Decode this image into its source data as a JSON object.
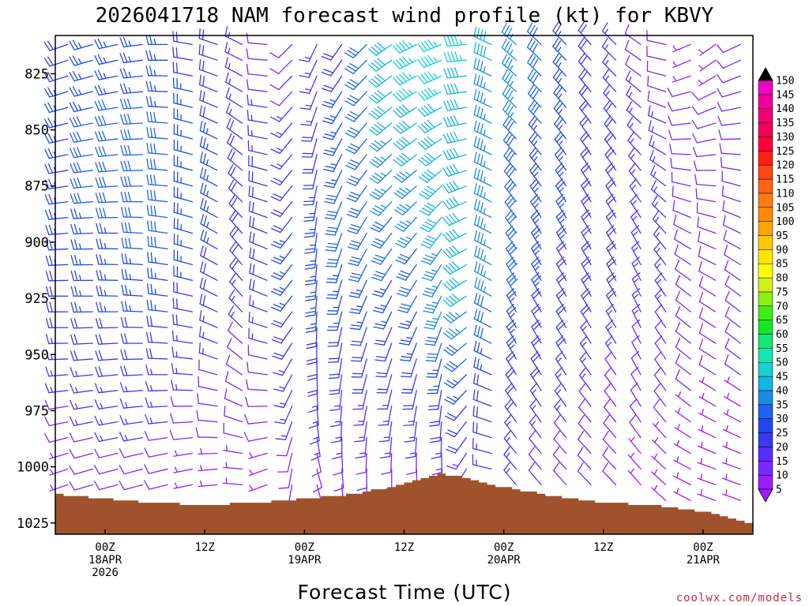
{
  "chart_data": {
    "type": "wind-profile",
    "title": "2026041718 NAM forecast wind profile (kt) for KBVY",
    "xlabel": "Forecast Time (UTC)",
    "ylabel": "",
    "credit": "coolwx.com/models",
    "units": "kt",
    "y_axis": {
      "inverted": true,
      "ylim": [
        808,
        1030
      ],
      "ticks": [
        825,
        850,
        875,
        900,
        925,
        950,
        975,
        1000,
        1025
      ],
      "tick_labels": [
        "825",
        "850",
        "875",
        "900",
        "925",
        "950",
        "975",
        "1000",
        "1025"
      ]
    },
    "x_axis": {
      "xlim_hours": [
        -6,
        78
      ],
      "ticks": [
        {
          "hour": 0,
          "label1": "00Z",
          "label2": "18APR",
          "label3": "2026"
        },
        {
          "hour": 12,
          "label1": "12Z",
          "label2": "",
          "label3": ""
        },
        {
          "hour": 24,
          "label1": "00Z",
          "label2": "19APR",
          "label3": ""
        },
        {
          "hour": 36,
          "label1": "12Z",
          "label2": "",
          "label3": ""
        },
        {
          "hour": 48,
          "label1": "00Z",
          "label2": "20APR",
          "label3": ""
        },
        {
          "hour": 60,
          "label1": "12Z",
          "label2": "",
          "label3": ""
        },
        {
          "hour": 72,
          "label1": "00Z",
          "label2": "21APR",
          "label3": ""
        }
      ]
    },
    "forecast_hours": [
      -6,
      0,
      6,
      12,
      18,
      24,
      30,
      36,
      42,
      48,
      54,
      60,
      66,
      72,
      78
    ],
    "wind_barbs_sampled": [
      {
        "hour": -6,
        "levels": [
          820,
          850,
          875,
          900,
          925,
          950,
          975,
          1000
        ],
        "speeds": [
          20,
          25,
          25,
          25,
          20,
          15,
          10,
          5
        ],
        "dirs": [
          250,
          255,
          260,
          265,
          270,
          270,
          260,
          250
        ]
      },
      {
        "hour": 0,
        "levels": [
          820,
          850,
          875,
          900,
          925,
          950,
          975,
          1000
        ],
        "speeds": [
          25,
          30,
          30,
          25,
          25,
          20,
          15,
          10
        ],
        "dirs": [
          255,
          260,
          265,
          270,
          270,
          265,
          260,
          255
        ]
      },
      {
        "hour": 6,
        "levels": [
          820,
          850,
          875,
          900,
          925,
          950,
          975,
          1000
        ],
        "speeds": [
          25,
          30,
          30,
          30,
          25,
          20,
          15,
          10
        ],
        "dirs": [
          265,
          270,
          270,
          275,
          275,
          270,
          265,
          255
        ]
      },
      {
        "hour": 12,
        "levels": [
          820,
          850,
          875,
          900,
          925,
          950,
          975,
          1000
        ],
        "speeds": [
          20,
          25,
          25,
          25,
          20,
          15,
          10,
          5
        ],
        "dirs": [
          285,
          290,
          290,
          290,
          285,
          280,
          270,
          260
        ]
      },
      {
        "hour": 18,
        "levels": [
          820,
          850,
          875,
          900,
          925,
          950,
          975,
          1000
        ],
        "speeds": [
          10,
          15,
          20,
          20,
          15,
          10,
          10,
          5
        ],
        "dirs": [
          300,
          310,
          320,
          330,
          330,
          320,
          300,
          280
        ]
      },
      {
        "hour": 24,
        "levels": [
          820,
          850,
          875,
          900,
          925,
          950,
          975,
          1000
        ],
        "speeds": [
          10,
          15,
          20,
          25,
          25,
          20,
          15,
          10
        ],
        "dirs": [
          200,
          190,
          185,
          180,
          180,
          175,
          170,
          160
        ]
      },
      {
        "hour": 30,
        "levels": [
          820,
          850,
          875,
          900,
          925,
          950,
          975,
          1000
        ],
        "speeds": [
          25,
          30,
          30,
          30,
          25,
          20,
          15,
          10
        ],
        "dirs": [
          220,
          215,
          210,
          205,
          200,
          195,
          190,
          180
        ]
      },
      {
        "hour": 36,
        "levels": [
          820,
          850,
          875,
          900,
          925,
          950,
          975,
          1000
        ],
        "speeds": [
          45,
          40,
          35,
          30,
          25,
          20,
          15,
          10
        ],
        "dirs": [
          240,
          235,
          230,
          220,
          210,
          200,
          190,
          180
        ]
      },
      {
        "hour": 42,
        "levels": [
          820,
          850,
          875,
          900,
          925,
          950,
          975,
          1000
        ],
        "speeds": [
          45,
          40,
          40,
          40,
          40,
          30,
          20,
          15
        ],
        "dirs": [
          250,
          240,
          225,
          215,
          205,
          195,
          185,
          175
        ]
      },
      {
        "hour": 48,
        "levels": [
          820,
          850,
          875,
          900,
          925,
          950,
          975,
          1000
        ],
        "speeds": [
          35,
          35,
          30,
          30,
          30,
          25,
          20,
          15
        ],
        "dirs": [
          310,
          315,
          320,
          325,
          330,
          330,
          325,
          320
        ]
      },
      {
        "hour": 54,
        "levels": [
          820,
          850,
          875,
          900,
          925,
          950,
          975,
          1000
        ],
        "speeds": [
          25,
          25,
          25,
          25,
          20,
          20,
          15,
          10
        ],
        "dirs": [
          315,
          320,
          325,
          330,
          330,
          330,
          325,
          320
        ]
      },
      {
        "hour": 60,
        "levels": [
          820,
          850,
          875,
          900,
          925,
          950,
          975,
          1000
        ],
        "speeds": [
          15,
          20,
          20,
          20,
          20,
          15,
          10,
          10
        ],
        "dirs": [
          320,
          325,
          330,
          330,
          330,
          325,
          320,
          315
        ]
      },
      {
        "hour": 66,
        "levels": [
          820,
          850,
          875,
          900,
          925,
          950,
          975,
          1000
        ],
        "speeds": [
          10,
          15,
          15,
          15,
          15,
          10,
          10,
          5
        ],
        "dirs": [
          300,
          310,
          320,
          330,
          335,
          335,
          330,
          320
        ]
      },
      {
        "hour": 72,
        "levels": [
          820,
          850,
          875,
          900,
          925,
          950,
          975,
          1000
        ],
        "speeds": [
          5,
          10,
          10,
          10,
          10,
          10,
          5,
          5
        ],
        "dirs": [
          230,
          250,
          270,
          290,
          300,
          300,
          300,
          290
        ]
      },
      {
        "hour": 78,
        "levels": [
          820,
          850,
          875,
          900,
          925,
          950,
          975,
          1000
        ],
        "speeds": [
          10,
          10,
          10,
          10,
          10,
          10,
          5,
          5
        ],
        "dirs": [
          250,
          270,
          290,
          300,
          310,
          310,
          300,
          290
        ]
      }
    ],
    "surface_pressure": {
      "hours": [
        -6,
        0,
        6,
        12,
        18,
        24,
        30,
        36,
        40,
        44,
        48,
        54,
        60,
        66,
        72,
        78
      ],
      "values": [
        1012,
        1014,
        1016,
        1017,
        1016,
        1014,
        1012,
        1008,
        1003,
        1005,
        1009,
        1013,
        1016,
        1017,
        1020,
        1025
      ]
    },
    "colorbar": {
      "values": [
        5,
        10,
        15,
        20,
        25,
        30,
        35,
        40,
        45,
        50,
        55,
        60,
        65,
        70,
        75,
        80,
        85,
        90,
        95,
        100,
        105,
        110,
        115,
        120,
        125,
        130,
        135,
        140,
        145,
        150
      ],
      "labels": [
        "5",
        "10",
        "15",
        "20",
        "25",
        "30",
        "35",
        "40",
        "45",
        "50",
        "55",
        "60",
        "65",
        "70",
        "75",
        "80",
        "85",
        "90",
        "95",
        "100",
        "105",
        "110",
        "115",
        "120",
        "125",
        "130",
        "135",
        "140",
        "145",
        "150"
      ],
      "colors": [
        "#9a1cff",
        "#7a28ff",
        "#5a2cff",
        "#3a38f0",
        "#2448f0",
        "#1e64f0",
        "#1a8ce6",
        "#14b4e6",
        "#14d2d2",
        "#14e6b4",
        "#14e678",
        "#14e628",
        "#3cf014",
        "#8cf014",
        "#d2f014",
        "#ffff00",
        "#ffe600",
        "#ffc800",
        "#ffa500",
        "#ff8c00",
        "#ff7a14",
        "#ff6414",
        "#ff4614",
        "#ff1e14",
        "#ff003c",
        "#f0005a",
        "#f00078",
        "#f0009a",
        "#f000c8",
        "#e600e6"
      ]
    },
    "ground_color": "#a0522d"
  }
}
